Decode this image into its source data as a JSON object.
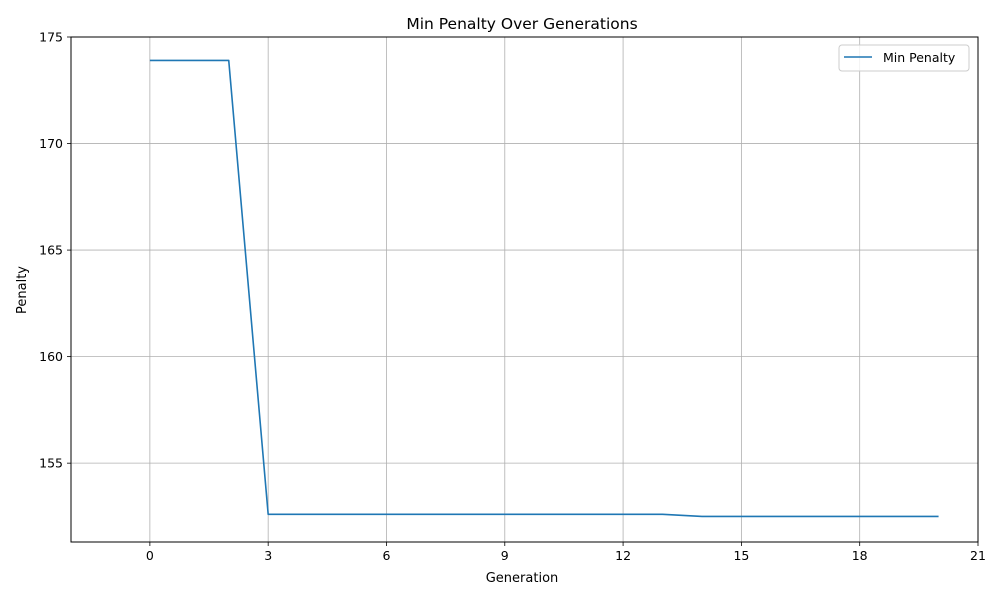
{
  "chart_data": {
    "type": "line",
    "title": "Min Penalty Over Generations",
    "xlabel": "Generation",
    "ylabel": "Penalty",
    "xlim": [
      -2,
      21
    ],
    "ylim": [
      151.3,
      175
    ],
    "xticks": [
      0,
      3,
      6,
      9,
      12,
      15,
      18,
      21
    ],
    "yticks": [
      155,
      160,
      165,
      170,
      175
    ],
    "grid": true,
    "legend_position": "top-right",
    "series": [
      {
        "name": "Min Penalty",
        "color": "#1f77b4",
        "x": [
          0,
          1,
          2,
          3,
          4,
          5,
          6,
          7,
          8,
          9,
          10,
          11,
          12,
          13,
          14,
          15,
          16,
          17,
          18,
          19,
          20
        ],
        "y": [
          173.9,
          173.9,
          173.9,
          152.6,
          152.6,
          152.6,
          152.6,
          152.6,
          152.6,
          152.6,
          152.6,
          152.6,
          152.6,
          152.6,
          152.5,
          152.5,
          152.5,
          152.5,
          152.5,
          152.5,
          152.5
        ]
      }
    ]
  }
}
